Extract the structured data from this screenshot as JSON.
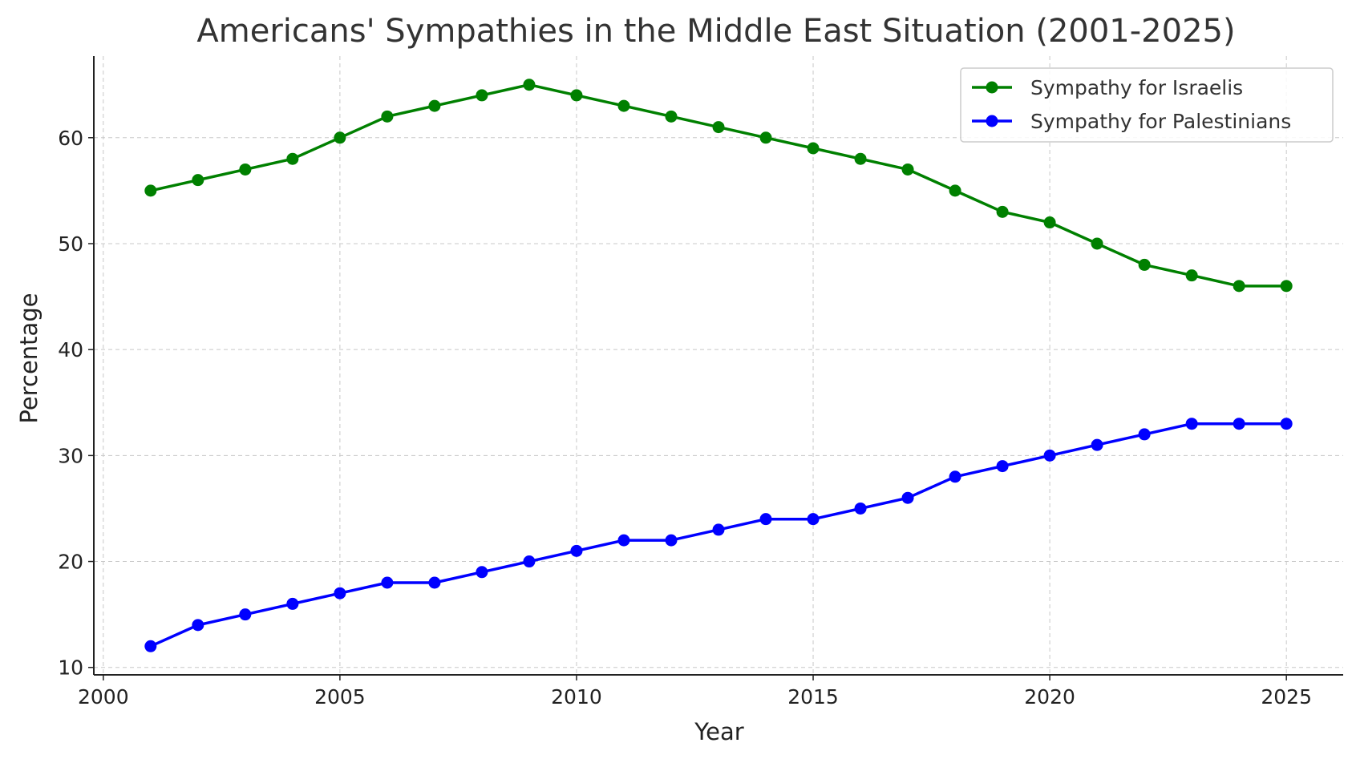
{
  "chart_data": {
    "type": "line",
    "title": "Americans' Sympathies in the Middle East Situation (2001-2025)",
    "xlabel": "Year",
    "ylabel": "Percentage",
    "x": [
      2001,
      2002,
      2003,
      2004,
      2005,
      2006,
      2007,
      2008,
      2009,
      2010,
      2011,
      2012,
      2013,
      2014,
      2015,
      2016,
      2017,
      2018,
      2019,
      2020,
      2021,
      2022,
      2023,
      2024,
      2025
    ],
    "xticks": [
      2000,
      2005,
      2010,
      2015,
      2020,
      2025
    ],
    "yticks": [
      10,
      20,
      30,
      40,
      50,
      60
    ],
    "xlim": [
      1999.8,
      2026.2
    ],
    "ylim": [
      9.3,
      67.7
    ],
    "grid": true,
    "legend_position": "top-right",
    "series": [
      {
        "name": "Sympathy for Israelis",
        "color": "#008000",
        "values": [
          55,
          56,
          57,
          58,
          60,
          62,
          63,
          64,
          65,
          64,
          63,
          62,
          61,
          60,
          59,
          58,
          57,
          55,
          53,
          52,
          50,
          48,
          47,
          46,
          46
        ]
      },
      {
        "name": "Sympathy for Palestinians",
        "color": "#0000ff",
        "values": [
          12,
          14,
          15,
          16,
          17,
          18,
          18,
          19,
          20,
          21,
          22,
          22,
          23,
          24,
          24,
          25,
          26,
          28,
          29,
          30,
          31,
          32,
          33,
          33,
          33
        ]
      }
    ]
  }
}
